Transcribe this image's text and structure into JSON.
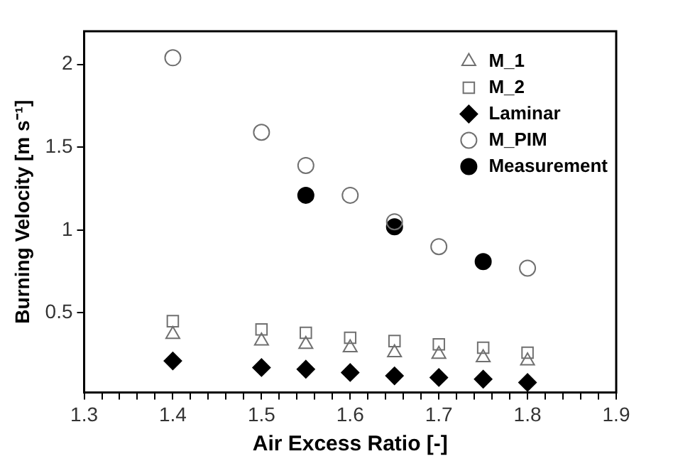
{
  "chart_data": {
    "type": "scatter",
    "xlabel": "Air Excess Ratio [-]",
    "ylabel": "Burning Velocity [m s⁻¹]",
    "x": [
      1.4,
      1.5,
      1.55,
      1.6,
      1.65,
      1.7,
      1.75,
      1.8
    ],
    "xlim": [
      1.3,
      1.9
    ],
    "xticks": [
      1.3,
      {
        "value": 1.32,
        "label": null
      },
      {
        "value": 1.34,
        "label": null
      },
      {
        "value": 1.36,
        "label": null
      },
      {
        "value": 1.38,
        "label": null
      },
      1.4,
      {
        "value": 1.42,
        "label": null
      },
      {
        "value": 1.44,
        "label": null
      },
      {
        "value": 1.46,
        "label": null
      },
      {
        "value": 1.48,
        "label": null
      },
      1.5,
      {
        "value": 1.52,
        "label": null
      },
      {
        "value": 1.54,
        "label": null
      },
      {
        "value": 1.56,
        "label": null
      },
      {
        "value": 1.58,
        "label": null
      },
      1.6,
      {
        "value": 1.62,
        "label": null
      },
      {
        "value": 1.64,
        "label": null
      },
      {
        "value": 1.66,
        "label": null
      },
      {
        "value": 1.68,
        "label": null
      },
      1.7,
      {
        "value": 1.72,
        "label": null
      },
      {
        "value": 1.74,
        "label": null
      },
      {
        "value": 1.76,
        "label": null
      },
      {
        "value": 1.78,
        "label": null
      },
      1.8,
      {
        "value": 1.82,
        "label": null
      },
      {
        "value": 1.84,
        "label": null
      },
      {
        "value": 1.86,
        "label": null
      },
      {
        "value": 1.88,
        "label": null
      },
      1.9
    ],
    "ylim": [
      0.02,
      2.2
    ],
    "yticks": [
      0.5,
      1,
      1.5,
      2
    ],
    "grid": false,
    "legend": "top right",
    "series": [
      {
        "name": "M_1",
        "color": "#707070",
        "marker": "triangle",
        "values": [
          0.37,
          0.33,
          0.31,
          0.29,
          0.26,
          0.25,
          0.23,
          0.21
        ]
      },
      {
        "name": "M_2",
        "color": "#707070",
        "marker": "square",
        "values": [
          0.45,
          0.4,
          0.38,
          0.35,
          0.33,
          0.31,
          0.29,
          0.26
        ]
      },
      {
        "name": "Laminar",
        "color": "#000000",
        "marker": "diamond",
        "values": [
          0.21,
          0.17,
          0.16,
          0.14,
          0.12,
          0.11,
          0.1,
          0.08
        ]
      },
      {
        "name": "M_PIM",
        "color": "#707070",
        "marker": "circle",
        "values": [
          2.04,
          1.59,
          1.39,
          1.21,
          1.05,
          0.9,
          null,
          0.77
        ]
      },
      {
        "name": "Measurement",
        "color": "#000000",
        "marker": "circle",
        "x": [
          1.55,
          1.65,
          1.75
        ],
        "values": [
          1.21,
          1.02,
          0.81
        ]
      }
    ]
  }
}
